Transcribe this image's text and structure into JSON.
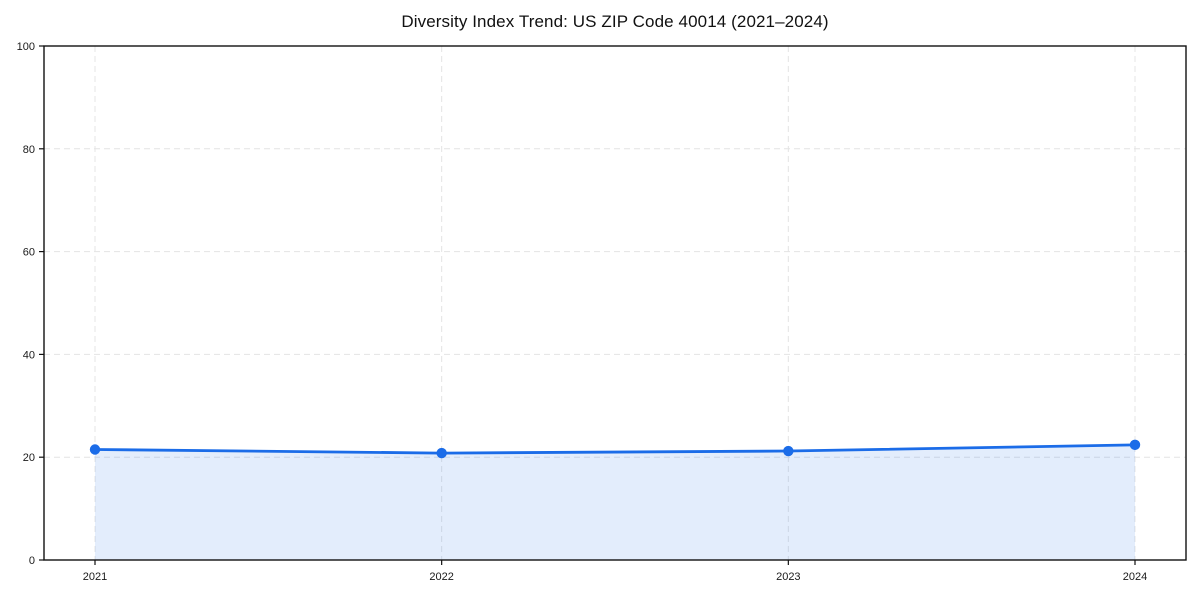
{
  "chart_data": {
    "type": "line",
    "title": "Diversity Index Trend: US ZIP Code 40014 (2021–2024)",
    "x": [
      "2021",
      "2022",
      "2023",
      "2024"
    ],
    "series": [
      {
        "name": "Diversity Index",
        "values": [
          21.5,
          20.8,
          21.2,
          22.4
        ]
      }
    ],
    "xlabel": "",
    "ylabel": "",
    "ylim": [
      0,
      100
    ],
    "yticks": [
      0,
      20,
      40,
      60,
      80,
      100
    ],
    "grid": true,
    "grid_style": "dashed",
    "legend_position": "none",
    "area_fill": true,
    "colors": {
      "line": "#1b6ce8",
      "marker": "#1b6ce8",
      "fill": "rgba(27,108,232,0.12)",
      "grid": "#e4e4e4",
      "axis": "#111111",
      "text": "#1a1a1a",
      "background": "#ffffff"
    }
  }
}
